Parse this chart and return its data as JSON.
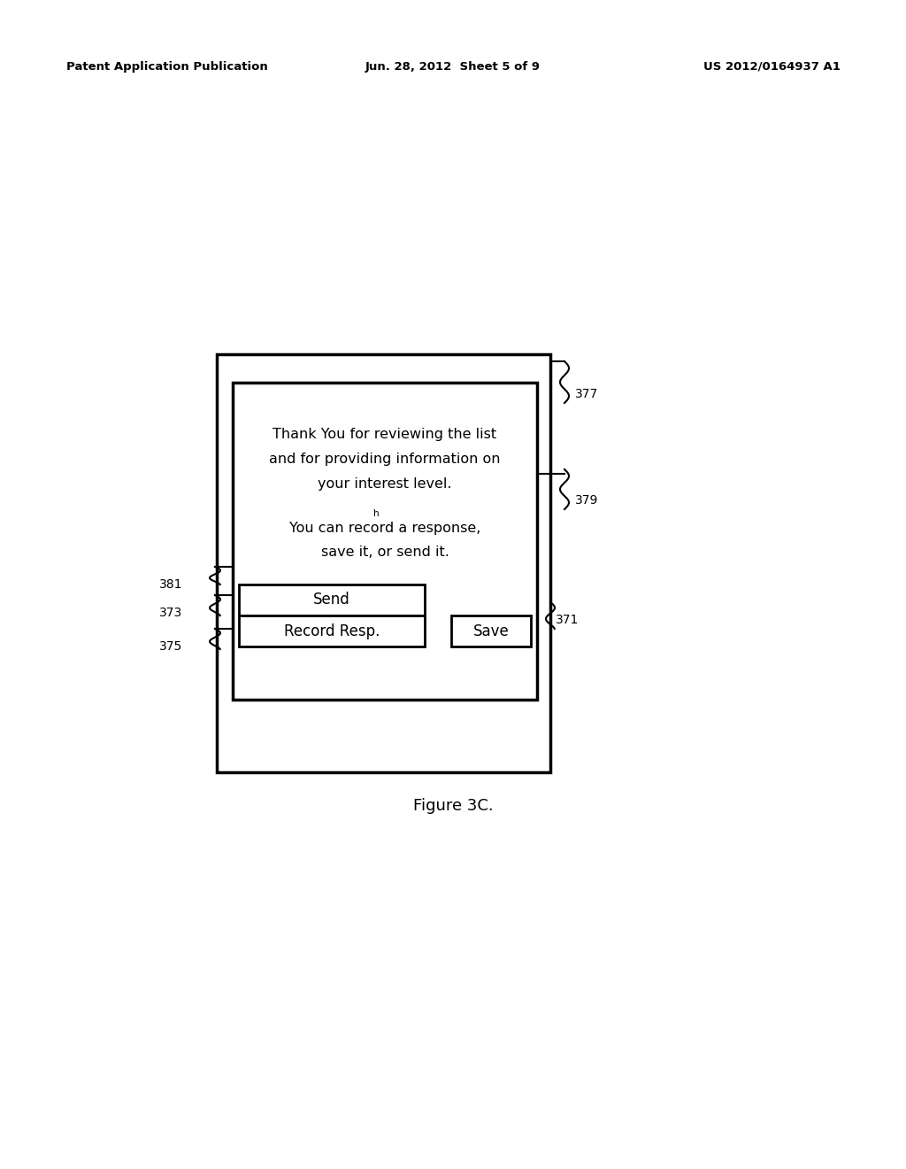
{
  "background_color": "#ffffff",
  "header_left": "Patent Application Publication",
  "header_center": "Jun. 28, 2012  Sheet 5 of 9",
  "header_right": "US 2012/0164937 A1",
  "figure_caption": "Figure 3C.",
  "text_line1": "Thank You for reviewing the list",
  "text_line2": "and for providing information on",
  "text_line3": "your interest level.",
  "text_small_h": "h",
  "text_line4": "You can record a response,",
  "text_line5": "save it, or send it.",
  "btn_send_label": "Send",
  "btn_record_label": "Record Resp.",
  "btn_save_label": "Save",
  "label_377": "377",
  "label_379": "379",
  "label_381": "381",
  "label_373": "373",
  "label_375": "375",
  "label_371": "371"
}
